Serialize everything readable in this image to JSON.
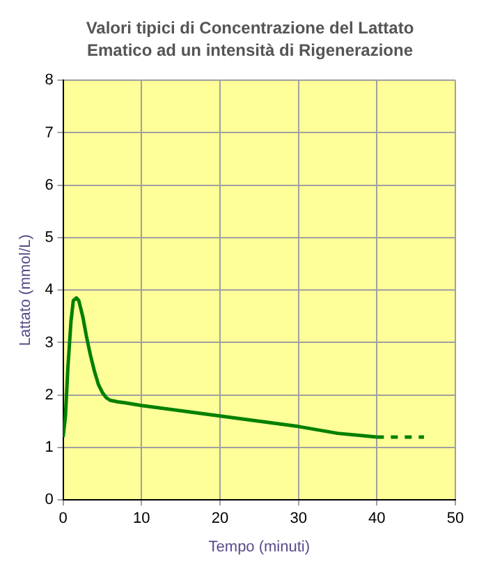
{
  "chart_data": {
    "type": "line",
    "title": "Valori tipici di Concentrazione del Lattato Ematico ad un intensità di Rigenerazione",
    "xlabel": "Tempo (minuti)",
    "ylabel": "Lattato (mmol/L)",
    "series": [
      {
        "color": "#008000",
        "x": [
          0,
          0.3,
          0.6,
          1.0,
          1.3,
          1.7,
          2.0,
          2.5,
          3,
          3.5,
          4,
          4.5,
          5,
          5.5,
          6,
          7,
          8,
          10,
          15,
          20,
          25,
          30,
          35,
          40
        ],
        "values": [
          1.2,
          1.6,
          2.5,
          3.4,
          3.8,
          3.85,
          3.8,
          3.5,
          3.1,
          2.75,
          2.45,
          2.2,
          2.05,
          1.95,
          1.9,
          1.87,
          1.85,
          1.8,
          1.7,
          1.6,
          1.5,
          1.4,
          1.27,
          1.2
        ]
      },
      {
        "color": "#008000",
        "line_style": "dashed",
        "x": [
          40,
          46
        ],
        "values": [
          1.2,
          1.2
        ]
      }
    ],
    "xlim": [
      0,
      50
    ],
    "xticks": [
      0,
      10,
      20,
      30,
      40,
      50
    ],
    "ylim": [
      0,
      8
    ],
    "yticks": [
      0,
      1,
      2,
      3,
      4,
      5,
      6,
      7,
      8
    ],
    "grid": true,
    "legend": false,
    "marker": "none",
    "line_style": "solid"
  }
}
